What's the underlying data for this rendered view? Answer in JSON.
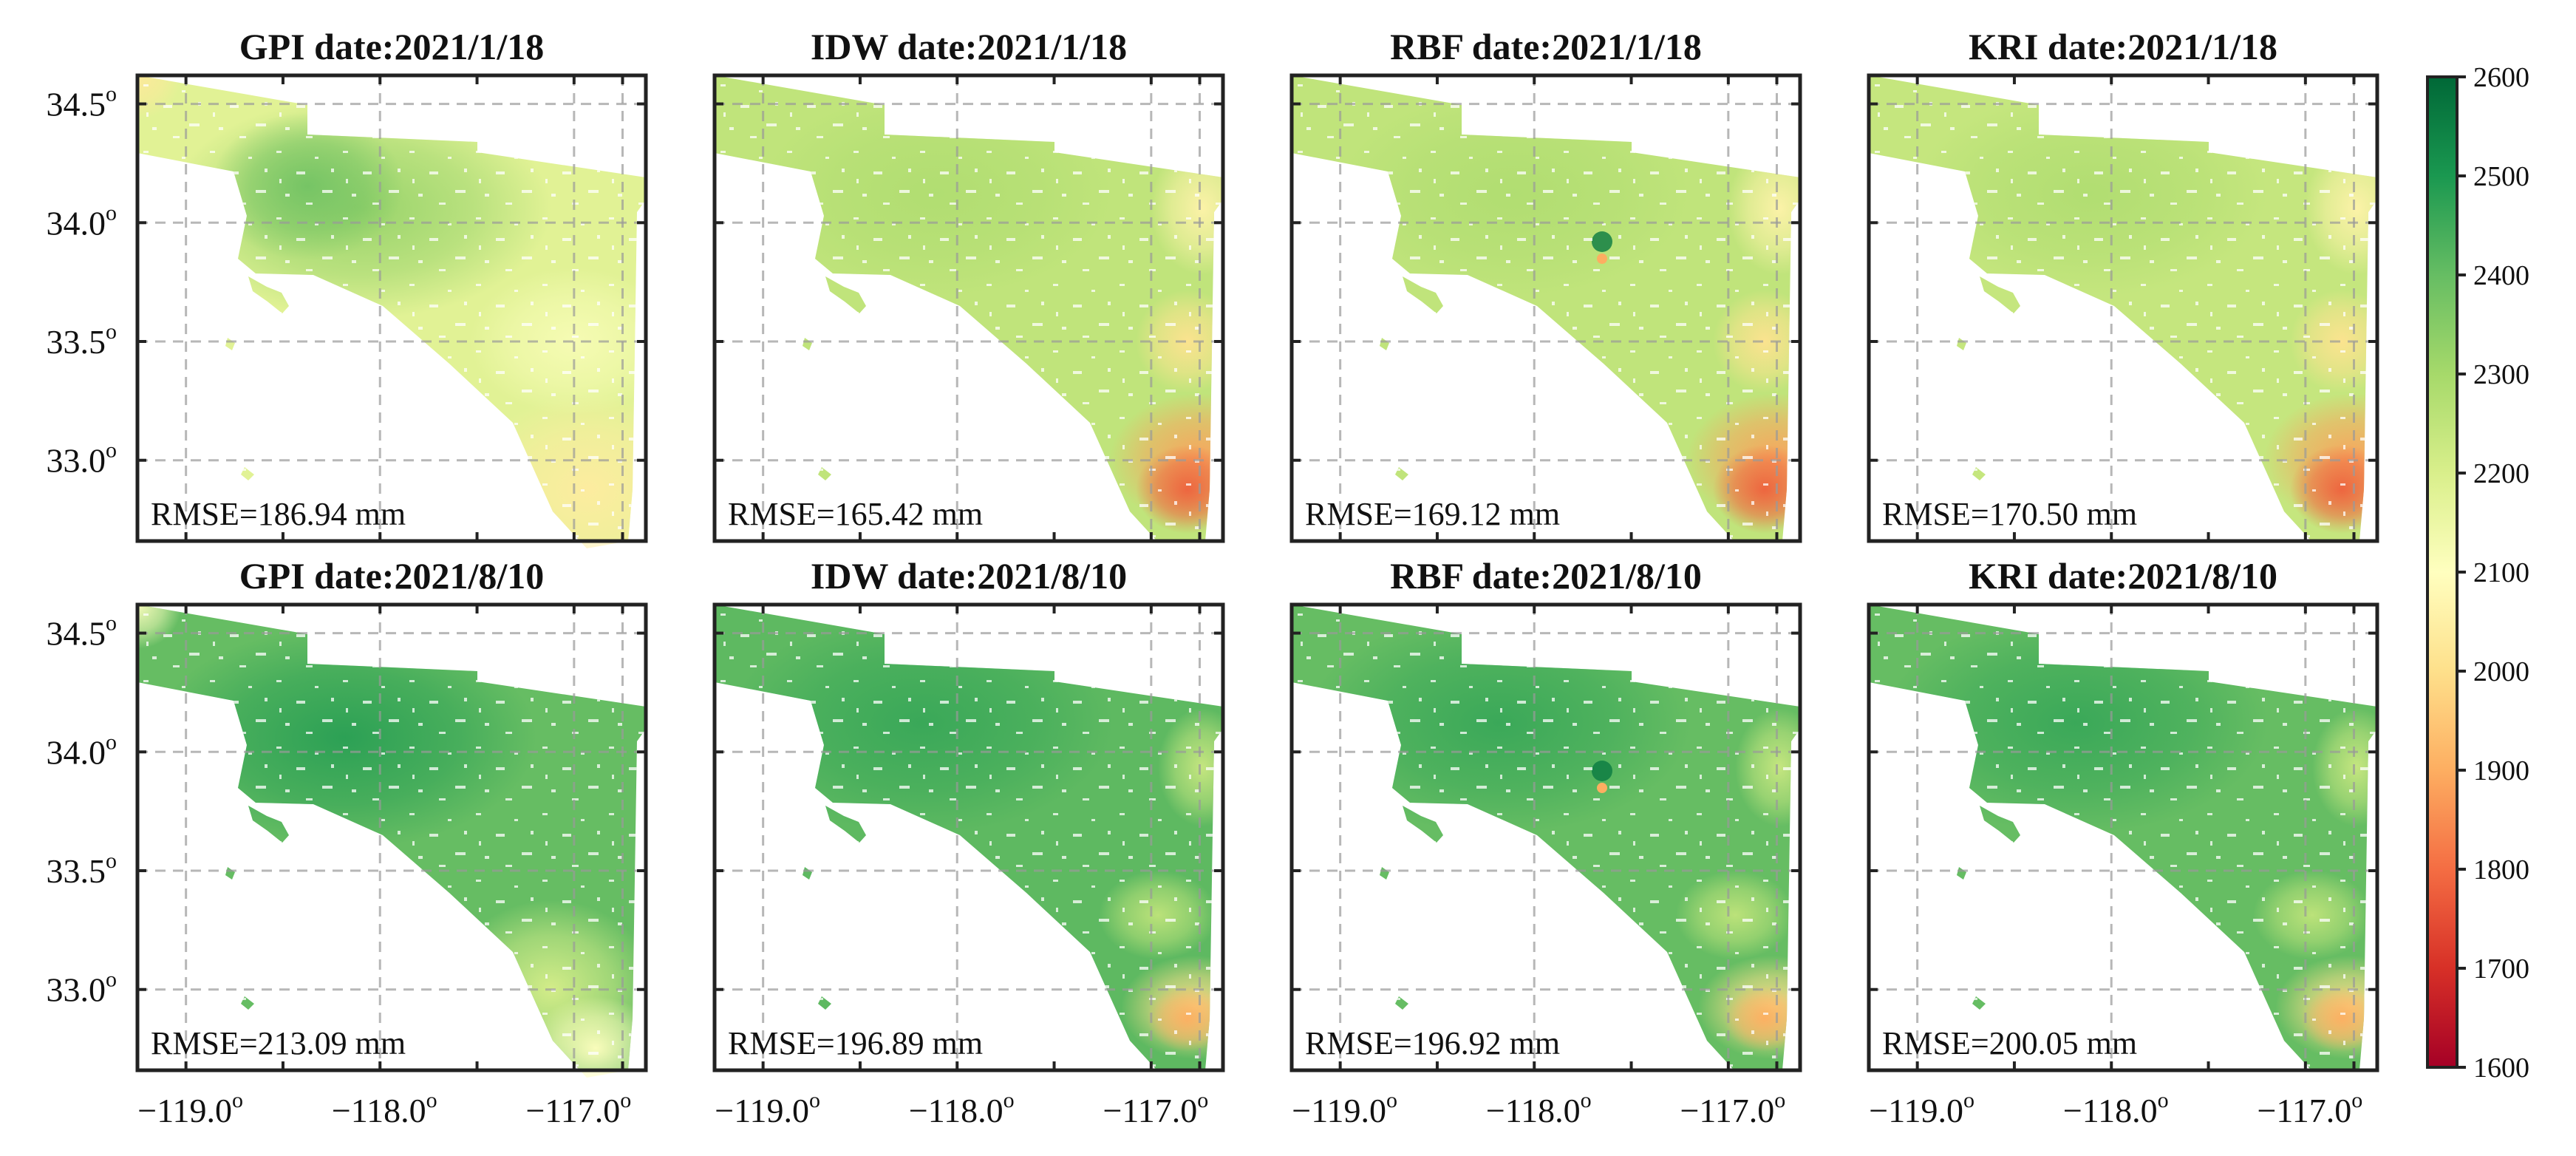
{
  "chart_data": {
    "type": "heatmap",
    "description_units": "mm",
    "x_ticks": [
      "−119.0",
      "−118.0",
      "−117.0"
    ],
    "y_ticks": [
      "34.5",
      "34.0",
      "33.5",
      "33.0"
    ],
    "degree_symbol": "o",
    "xlim": [
      -119.25,
      -116.63
    ],
    "ylim": [
      32.66,
      34.62
    ],
    "colorbar": {
      "min": 1600,
      "max": 2600,
      "ticks": [
        "2600",
        "2500",
        "2400",
        "2300",
        "2200",
        "2100",
        "2000",
        "1900",
        "1800",
        "1700",
        "1600"
      ],
      "colormap": "RdYlGn",
      "stops": [
        "#a50026",
        "#d73027",
        "#f46d43",
        "#fdae61",
        "#fee08b",
        "#ffffbf",
        "#d9ef8b",
        "#a6d96a",
        "#66bd63",
        "#1a9850",
        "#006837"
      ]
    },
    "panels": [
      {
        "method": "GPI",
        "title": "GPI date:2021/1/18",
        "date": "2021/1/18",
        "rmse_mm": 186.94,
        "rmse_label": "RMSE=186.94 mm",
        "base_value": 2180
      },
      {
        "method": "IDW",
        "title": "IDW date:2021/1/18",
        "date": "2021/1/18",
        "rmse_mm": 165.42,
        "rmse_label": "RMSE=165.42 mm",
        "base_value": 2250
      },
      {
        "method": "RBF",
        "title": "RBF date:2021/1/18",
        "date": "2021/1/18",
        "rmse_mm": 169.12,
        "rmse_label": "RMSE=169.12 mm",
        "base_value": 2250
      },
      {
        "method": "KRI",
        "title": "KRI date:2021/1/18",
        "date": "2021/1/18",
        "rmse_mm": 170.5,
        "rmse_label": "RMSE=170.50 mm",
        "base_value": 2240
      },
      {
        "method": "GPI",
        "title": "GPI date:2021/8/10",
        "date": "2021/8/10",
        "rmse_mm": 213.09,
        "rmse_label": "RMSE=213.09 mm",
        "base_value": 2400
      },
      {
        "method": "IDW",
        "title": "IDW date:2021/8/10",
        "date": "2021/8/10",
        "rmse_mm": 196.89,
        "rmse_label": "RMSE=196.89 mm",
        "base_value": 2410
      },
      {
        "method": "RBF",
        "title": "RBF date:2021/8/10",
        "date": "2021/8/10",
        "rmse_mm": 196.92,
        "rmse_label": "RMSE=196.92 mm",
        "base_value": 2400
      },
      {
        "method": "KRI",
        "title": "KRI date:2021/8/10",
        "date": "2021/8/10",
        "rmse_mm": 200.05,
        "rmse_label": "RMSE=200.05 mm",
        "base_value": 2400
      }
    ]
  }
}
